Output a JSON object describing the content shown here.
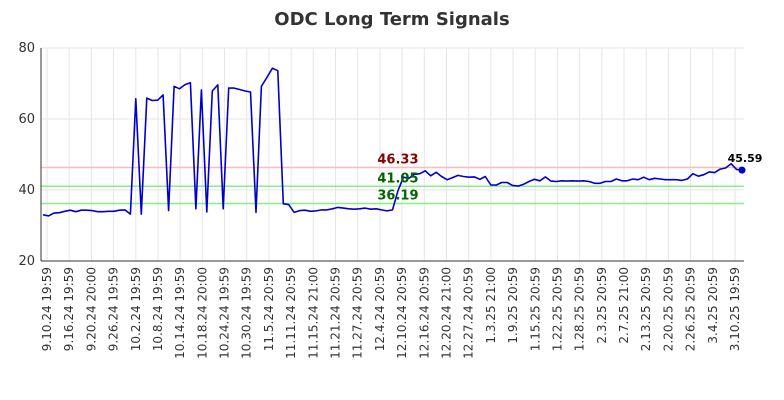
{
  "chart_data": {
    "type": "line",
    "title": "ODC Long Term Signals",
    "xlabel": "",
    "ylabel": "",
    "ylim": [
      20,
      80
    ],
    "yticks": [
      20,
      40,
      60,
      80
    ],
    "grid": true,
    "x_tick_labels": [
      "9.10.24 19:59",
      "9.16.24 19:59",
      "9.20.24 20:00",
      "9.26.24 19:59",
      "10.2.24 19:59",
      "10.8.24 19:59",
      "10.14.24 19:59",
      "10.18.24 20:00",
      "10.24.24 19:59",
      "10.30.24 19:59",
      "11.5.24 20:59",
      "11.11.24 20:59",
      "11.15.24 21:00",
      "11.21.24 20:59",
      "11.27.24 20:59",
      "12.4.24 20:59",
      "12.10.24 20:59",
      "12.16.24 20:59",
      "12.20.24 21:00",
      "12.27.24 20:59",
      "1.3.25 21:00",
      "1.9.25 20:59",
      "1.15.25 20:59",
      "1.22.25 20:59",
      "1.28.25 20:59",
      "2.3.25 20:59",
      "2.7.25 21:00",
      "2.13.25 20:59",
      "2.20.25 20:59",
      "2.26.25 20:59",
      "3.4.25 20:59",
      "3.10.25 19:59"
    ],
    "series": [
      {
        "name": "ODC",
        "color": "#0000cc",
        "values": [
          33.0,
          32.7,
          33.5,
          33.6,
          34.0,
          34.3,
          33.9,
          34.3,
          34.3,
          34.2,
          33.9,
          33.9,
          34.0,
          34.0,
          34.3,
          34.4,
          33.2,
          65.7,
          33.2,
          65.9,
          65.2,
          65.3,
          66.8,
          34.2,
          69.2,
          68.5,
          69.7,
          70.2,
          34.7,
          68.2,
          33.8,
          67.9,
          69.6,
          34.7,
          68.7,
          68.7,
          68.3,
          67.9,
          67.6,
          33.7,
          69.2,
          71.7,
          74.3,
          73.6,
          36.1,
          35.9,
          33.7,
          34.2,
          34.3,
          34.0,
          34.1,
          34.4,
          34.4,
          34.7,
          35.1,
          34.9,
          34.7,
          34.6,
          34.7,
          34.9,
          34.6,
          34.7,
          34.4,
          34.1,
          34.4,
          39.8,
          43.6,
          43.3,
          44.4,
          44.6,
          45.4,
          44.0,
          45.0,
          43.8,
          42.9,
          43.5,
          44.1,
          43.8,
          43.6,
          43.7,
          43.0,
          43.8,
          41.4,
          41.4,
          42.1,
          42.1,
          41.3,
          41.1,
          41.6,
          42.4,
          43.0,
          42.6,
          43.7,
          42.5,
          42.4,
          42.6,
          42.5,
          42.6,
          42.5,
          42.6,
          42.4,
          41.9,
          41.9,
          42.4,
          42.4,
          43.1,
          42.6,
          42.6,
          43.1,
          42.9,
          43.6,
          42.9,
          43.3,
          43.1,
          42.9,
          42.9,
          42.9,
          42.7,
          43.1,
          44.6,
          43.9,
          44.3,
          45.1,
          44.9,
          45.9,
          46.2,
          47.4,
          45.8,
          45.59
        ]
      }
    ],
    "levels": [
      {
        "name": "resistance",
        "value": 46.33,
        "label": "46.33",
        "line_color": "#ffbbbb",
        "label_color": "#8b0000"
      },
      {
        "name": "support-1",
        "value": 41.05,
        "label": "41.05",
        "line_color": "#88ee88",
        "label_color": "#006400"
      },
      {
        "name": "support-2",
        "value": 36.19,
        "label": "36.19",
        "line_color": "#88ee88",
        "label_color": "#006400"
      }
    ],
    "level_label_anchor_index": 65,
    "last_value": {
      "value": 45.59,
      "label": "45.59"
    }
  }
}
